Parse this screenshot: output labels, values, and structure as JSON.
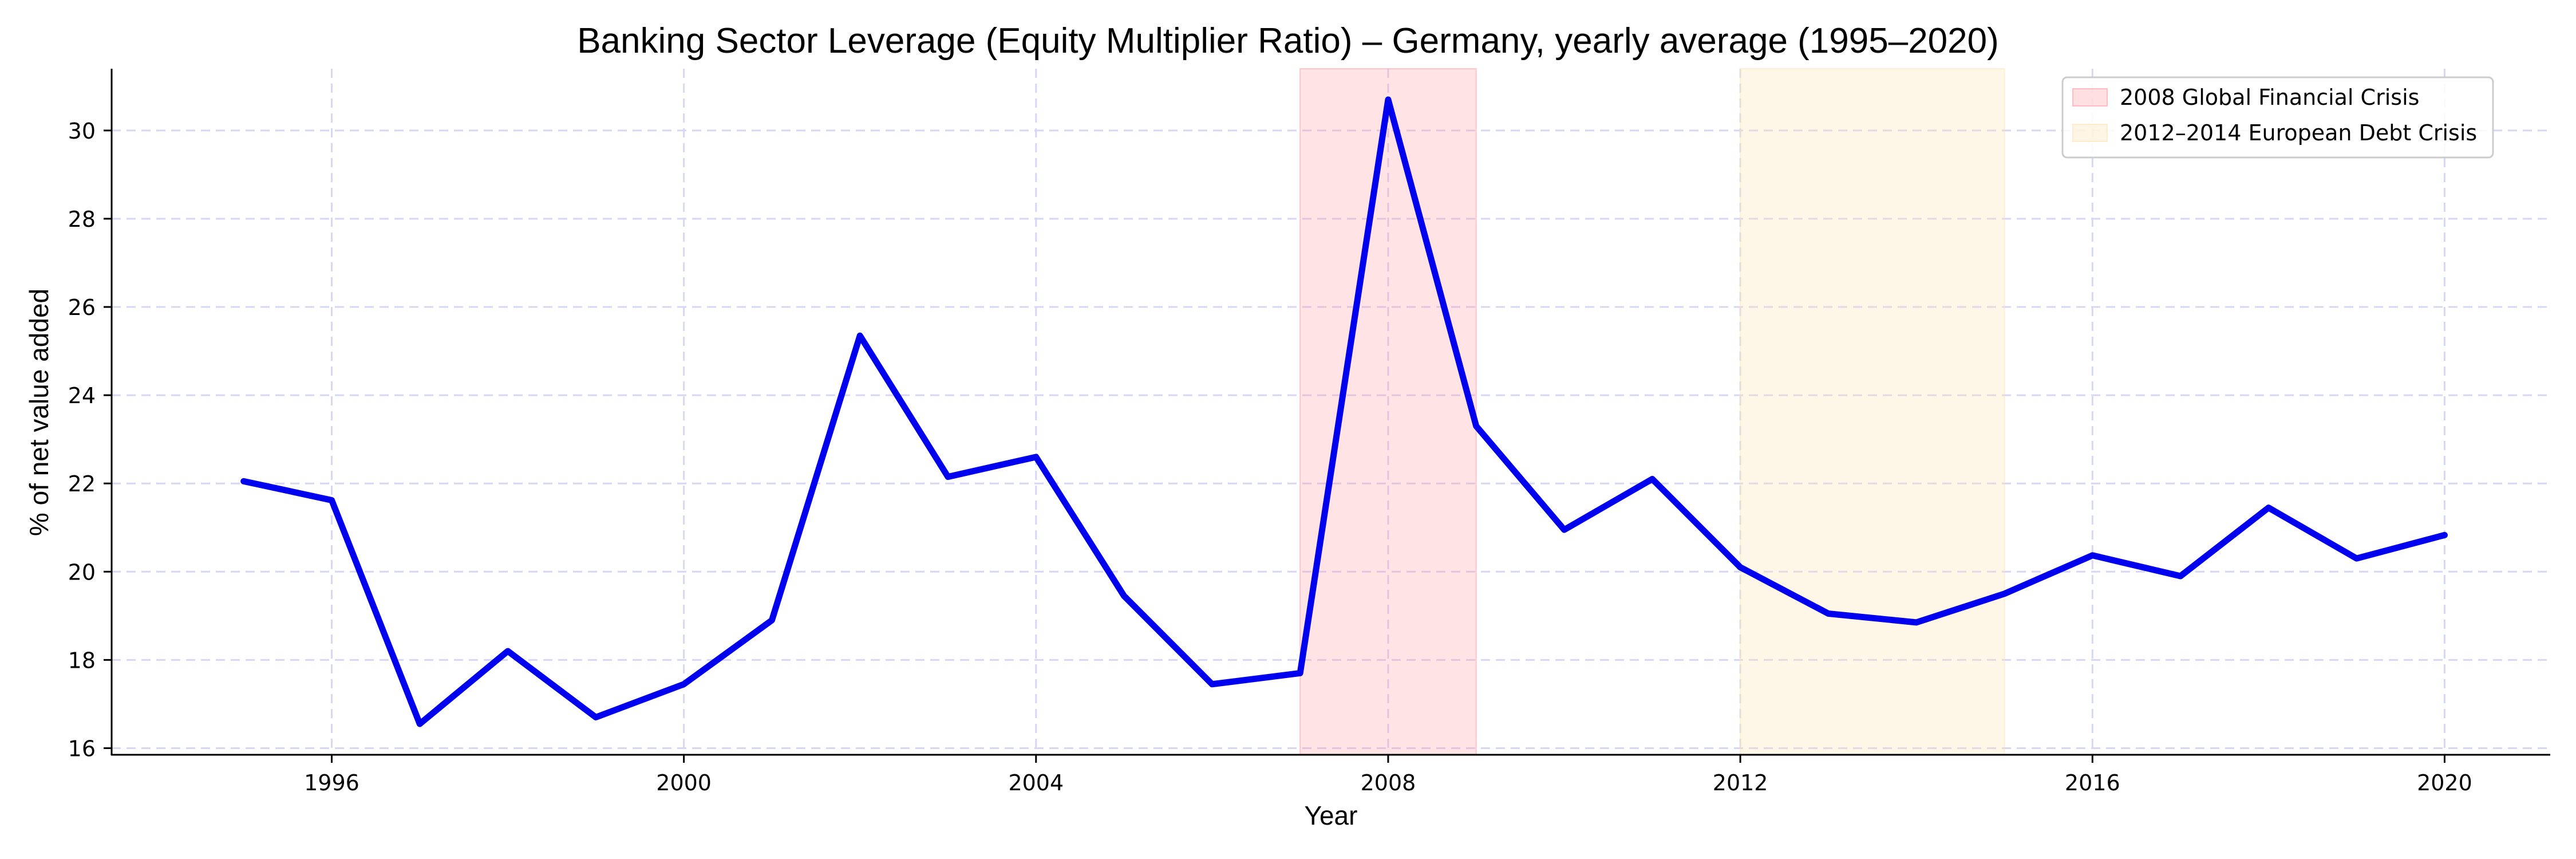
{
  "chart_data": {
    "type": "line",
    "title": "Banking Sector Leverage (Equity Multiplier Ratio) – Germany, yearly average (1995–2020)",
    "xlabel": "Year",
    "ylabel": "% of net value added",
    "xlim": [
      1993.5,
      2021.2
    ],
    "ylim": [
      15.85,
      31.4
    ],
    "xticks": [
      1996,
      2000,
      2004,
      2008,
      2012,
      2016,
      2020
    ],
    "yticks": [
      16,
      18,
      20,
      22,
      24,
      26,
      28,
      30
    ],
    "grid": true,
    "legend_position": "top-right",
    "series": [
      {
        "color": "#0000ee",
        "x": [
          1995,
          1996,
          1997,
          1998,
          1999,
          2000,
          2001,
          2002,
          2003,
          2004,
          2005,
          2006,
          2007,
          2008,
          2009,
          2010,
          2011,
          2012,
          2013,
          2014,
          2015,
          2016,
          2017,
          2018,
          2019,
          2020
        ],
        "y": [
          22.05,
          21.62,
          16.55,
          18.2,
          16.7,
          17.45,
          18.9,
          25.35,
          22.15,
          22.6,
          19.45,
          17.45,
          17.7,
          30.7,
          23.3,
          20.95,
          22.1,
          20.1,
          19.05,
          18.85,
          19.5,
          20.37,
          19.9,
          21.45,
          20.3,
          20.83
        ]
      }
    ],
    "shaded_regions": [
      {
        "label": "2008 Global Financial Crisis",
        "x_start": 2007,
        "x_end": 2009,
        "color": "#ff9aa2"
      },
      {
        "label": "2012–2014 European Debt Crisis",
        "x_start": 2012,
        "x_end": 2015,
        "color": "#fde3b4"
      }
    ]
  }
}
